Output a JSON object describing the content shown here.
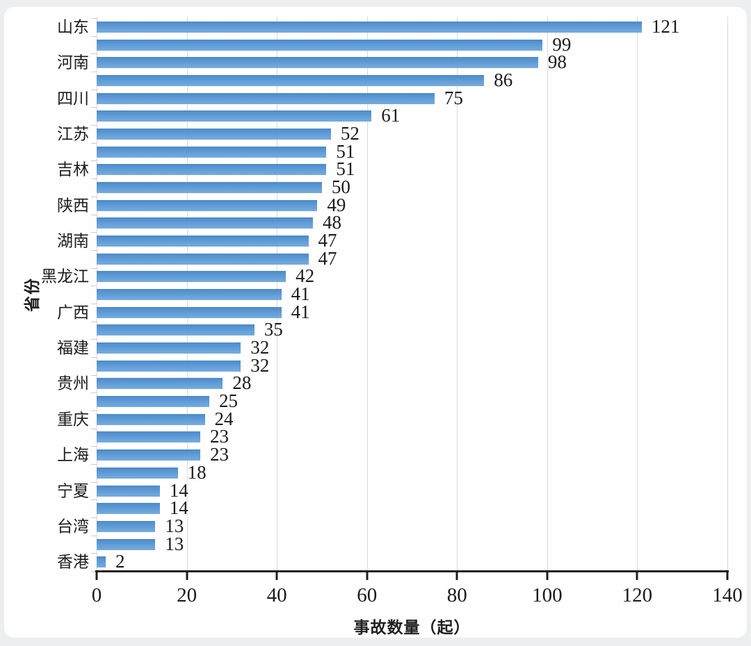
{
  "page": {
    "background_color": "#eceef0",
    "card_color": "#ffffff"
  },
  "chart_data": {
    "type": "bar",
    "orientation": "horizontal",
    "title": "",
    "xlabel": "事故数量（起）",
    "ylabel": "省份",
    "xlim": [
      0,
      140
    ],
    "x_ticks": [
      0,
      20,
      40,
      60,
      80,
      100,
      120,
      140
    ],
    "grid": "vertical-major",
    "legend": "none",
    "value_labels": true,
    "bar_color": "#5b9bd5",
    "gridline_color": "#d8dadc",
    "axis_color": "#1e1e1e",
    "bars": [
      {
        "label": "山东",
        "value": 121
      },
      {
        "label": "",
        "value": 99
      },
      {
        "label": "河南",
        "value": 98
      },
      {
        "label": "",
        "value": 86
      },
      {
        "label": "四川",
        "value": 75
      },
      {
        "label": "",
        "value": 61
      },
      {
        "label": "江苏",
        "value": 52
      },
      {
        "label": "",
        "value": 51
      },
      {
        "label": "吉林",
        "value": 51
      },
      {
        "label": "",
        "value": 50
      },
      {
        "label": "陕西",
        "value": 49
      },
      {
        "label": "",
        "value": 48
      },
      {
        "label": "湖南",
        "value": 47
      },
      {
        "label": "",
        "value": 47
      },
      {
        "label": "黑龙江",
        "value": 42
      },
      {
        "label": "",
        "value": 41
      },
      {
        "label": "广西",
        "value": 41
      },
      {
        "label": "",
        "value": 35
      },
      {
        "label": "福建",
        "value": 32
      },
      {
        "label": "",
        "value": 32
      },
      {
        "label": "贵州",
        "value": 28
      },
      {
        "label": "",
        "value": 25
      },
      {
        "label": "重庆",
        "value": 24
      },
      {
        "label": "",
        "value": 23
      },
      {
        "label": "上海",
        "value": 23
      },
      {
        "label": "",
        "value": 18
      },
      {
        "label": "宁夏",
        "value": 14
      },
      {
        "label": "",
        "value": 14
      },
      {
        "label": "台湾",
        "value": 13
      },
      {
        "label": "",
        "value": 13
      },
      {
        "label": "香港",
        "value": 2
      }
    ]
  }
}
